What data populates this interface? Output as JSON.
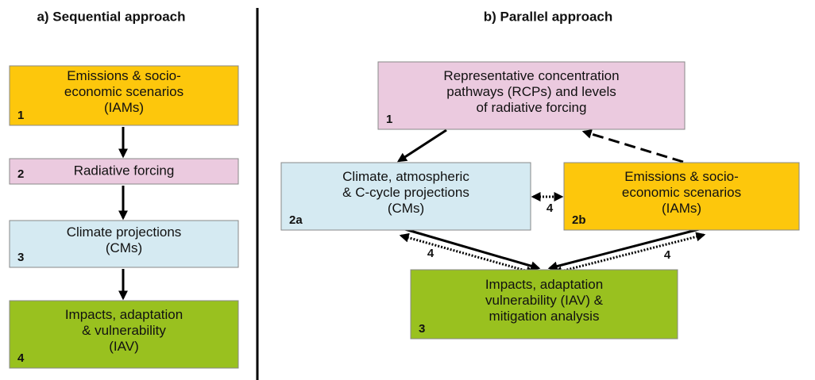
{
  "left": {
    "title": "a) Sequential approach",
    "boxes": [
      {
        "lines": [
          "Emissions & socio-",
          "economic scenarios",
          "(IAMs)"
        ],
        "number": "1"
      },
      {
        "lines": [
          "Radiative forcing"
        ],
        "number": "2"
      },
      {
        "lines": [
          "Climate projections",
          "(CMs)"
        ],
        "number": "3"
      },
      {
        "lines": [
          "Impacts, adaptation",
          "& vulnerability",
          "(IAV)"
        ],
        "number": "4"
      }
    ]
  },
  "right": {
    "title": "b) Parallel approach",
    "boxes": [
      {
        "lines": [
          "Representative concentration",
          "pathways (RCPs) and levels",
          "of radiative forcing"
        ],
        "number": "1"
      },
      {
        "lines": [
          "Climate, atmospheric",
          "& C-cycle projections",
          "(CMs)"
        ],
        "number": "2a"
      },
      {
        "lines": [
          "Emissions & socio-",
          "economic scenarios",
          "(IAMs)"
        ],
        "number": "2b"
      },
      {
        "lines": [
          "Impacts, adaptation",
          "vulnerability (IAV) &",
          "mitigation analysis"
        ],
        "number": "3"
      }
    ],
    "link_labels": [
      "4",
      "4",
      "4"
    ]
  }
}
